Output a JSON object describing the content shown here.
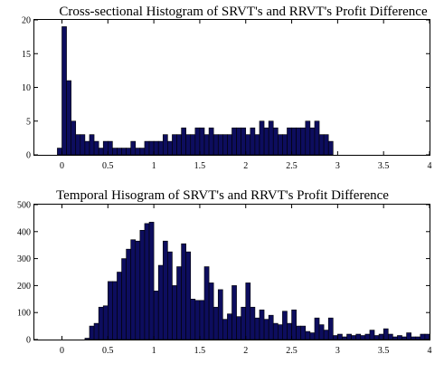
{
  "chart_data": [
    {
      "type": "bar",
      "title": "Cross-sectional Histogram of SRVT's and RRVT's Profit Difference",
      "xlabel": "",
      "ylabel": "",
      "xlim": [
        -0.3,
        4
      ],
      "ylim": [
        0,
        20
      ],
      "x_ticks": [
        "0",
        "0.5",
        "1",
        "1.5",
        "2",
        "2.5",
        "3",
        "3.5",
        "4"
      ],
      "y_ticks": [
        "0",
        "5",
        "10",
        "15",
        "20"
      ],
      "bin_width": 0.05,
      "bar_color": "#0d0d5e",
      "grid": false,
      "bins": [
        {
          "x": -0.025,
          "y": 1
        },
        {
          "x": 0.025,
          "y": 19
        },
        {
          "x": 0.075,
          "y": 11
        },
        {
          "x": 0.125,
          "y": 5
        },
        {
          "x": 0.175,
          "y": 3
        },
        {
          "x": 0.225,
          "y": 3
        },
        {
          "x": 0.275,
          "y": 2
        },
        {
          "x": 0.325,
          "y": 3
        },
        {
          "x": 0.375,
          "y": 2
        },
        {
          "x": 0.425,
          "y": 1
        },
        {
          "x": 0.475,
          "y": 2
        },
        {
          "x": 0.525,
          "y": 2
        },
        {
          "x": 0.575,
          "y": 1
        },
        {
          "x": 0.625,
          "y": 1
        },
        {
          "x": 0.675,
          "y": 1
        },
        {
          "x": 0.725,
          "y": 1
        },
        {
          "x": 0.775,
          "y": 2
        },
        {
          "x": 0.825,
          "y": 1
        },
        {
          "x": 0.875,
          "y": 1
        },
        {
          "x": 0.925,
          "y": 2
        },
        {
          "x": 0.975,
          "y": 2
        },
        {
          "x": 1.025,
          "y": 2
        },
        {
          "x": 1.075,
          "y": 2
        },
        {
          "x": 1.125,
          "y": 3
        },
        {
          "x": 1.175,
          "y": 2
        },
        {
          "x": 1.225,
          "y": 3
        },
        {
          "x": 1.275,
          "y": 3
        },
        {
          "x": 1.325,
          "y": 4
        },
        {
          "x": 1.375,
          "y": 3
        },
        {
          "x": 1.425,
          "y": 3
        },
        {
          "x": 1.475,
          "y": 4
        },
        {
          "x": 1.525,
          "y": 4
        },
        {
          "x": 1.575,
          "y": 3
        },
        {
          "x": 1.625,
          "y": 4
        },
        {
          "x": 1.675,
          "y": 3
        },
        {
          "x": 1.725,
          "y": 3
        },
        {
          "x": 1.775,
          "y": 3
        },
        {
          "x": 1.825,
          "y": 3
        },
        {
          "x": 1.875,
          "y": 4
        },
        {
          "x": 1.925,
          "y": 4
        },
        {
          "x": 1.975,
          "y": 4
        },
        {
          "x": 2.025,
          "y": 3
        },
        {
          "x": 2.075,
          "y": 4
        },
        {
          "x": 2.125,
          "y": 3
        },
        {
          "x": 2.175,
          "y": 5
        },
        {
          "x": 2.225,
          "y": 4
        },
        {
          "x": 2.275,
          "y": 5
        },
        {
          "x": 2.325,
          "y": 4
        },
        {
          "x": 2.375,
          "y": 3
        },
        {
          "x": 2.425,
          "y": 3
        },
        {
          "x": 2.475,
          "y": 4
        },
        {
          "x": 2.525,
          "y": 4
        },
        {
          "x": 2.575,
          "y": 4
        },
        {
          "x": 2.625,
          "y": 4
        },
        {
          "x": 2.675,
          "y": 5
        },
        {
          "x": 2.725,
          "y": 4
        },
        {
          "x": 2.775,
          "y": 5
        },
        {
          "x": 2.825,
          "y": 3
        },
        {
          "x": 2.875,
          "y": 3
        },
        {
          "x": 2.925,
          "y": 2
        }
      ]
    },
    {
      "type": "bar",
      "title": "Temporal Hisogram of SRVT's and RRVT's Profit Difference",
      "xlabel": "",
      "ylabel": "",
      "xlim": [
        -0.3,
        4
      ],
      "ylim": [
        0,
        500
      ],
      "x_ticks": [
        "0",
        "0.5",
        "1",
        "1.5",
        "2",
        "2.5",
        "3",
        "3.5",
        "4"
      ],
      "y_ticks": [
        "0",
        "100",
        "200",
        "300",
        "400",
        "500"
      ],
      "bin_width": 0.05,
      "bar_color": "#0d0d5e",
      "grid": false,
      "bins": [
        {
          "x": 0.275,
          "y": 5
        },
        {
          "x": 0.325,
          "y": 50
        },
        {
          "x": 0.375,
          "y": 60
        },
        {
          "x": 0.425,
          "y": 120
        },
        {
          "x": 0.475,
          "y": 125
        },
        {
          "x": 0.525,
          "y": 215
        },
        {
          "x": 0.575,
          "y": 215
        },
        {
          "x": 0.625,
          "y": 250
        },
        {
          "x": 0.675,
          "y": 300
        },
        {
          "x": 0.725,
          "y": 335
        },
        {
          "x": 0.775,
          "y": 370
        },
        {
          "x": 0.825,
          "y": 365
        },
        {
          "x": 0.875,
          "y": 405
        },
        {
          "x": 0.925,
          "y": 430
        },
        {
          "x": 0.975,
          "y": 435
        },
        {
          "x": 1.025,
          "y": 180
        },
        {
          "x": 1.075,
          "y": 275
        },
        {
          "x": 1.125,
          "y": 365
        },
        {
          "x": 1.175,
          "y": 325
        },
        {
          "x": 1.225,
          "y": 200
        },
        {
          "x": 1.275,
          "y": 270
        },
        {
          "x": 1.325,
          "y": 355
        },
        {
          "x": 1.375,
          "y": 325
        },
        {
          "x": 1.425,
          "y": 150
        },
        {
          "x": 1.475,
          "y": 145
        },
        {
          "x": 1.525,
          "y": 145
        },
        {
          "x": 1.575,
          "y": 270
        },
        {
          "x": 1.625,
          "y": 210
        },
        {
          "x": 1.675,
          "y": 120
        },
        {
          "x": 1.725,
          "y": 185
        },
        {
          "x": 1.775,
          "y": 75
        },
        {
          "x": 1.825,
          "y": 95
        },
        {
          "x": 1.875,
          "y": 200
        },
        {
          "x": 1.925,
          "y": 85
        },
        {
          "x": 1.975,
          "y": 120
        },
        {
          "x": 2.025,
          "y": 210
        },
        {
          "x": 2.075,
          "y": 120
        },
        {
          "x": 2.125,
          "y": 80
        },
        {
          "x": 2.175,
          "y": 110
        },
        {
          "x": 2.225,
          "y": 75
        },
        {
          "x": 2.275,
          "y": 90
        },
        {
          "x": 2.325,
          "y": 60
        },
        {
          "x": 2.375,
          "y": 55
        },
        {
          "x": 2.425,
          "y": 105
        },
        {
          "x": 2.475,
          "y": 60
        },
        {
          "x": 2.525,
          "y": 110
        },
        {
          "x": 2.575,
          "y": 50
        },
        {
          "x": 2.625,
          "y": 50
        },
        {
          "x": 2.675,
          "y": 30
        },
        {
          "x": 2.725,
          "y": 25
        },
        {
          "x": 2.775,
          "y": 80
        },
        {
          "x": 2.825,
          "y": 55
        },
        {
          "x": 2.875,
          "y": 35
        },
        {
          "x": 2.925,
          "y": 80
        },
        {
          "x": 2.975,
          "y": 15
        },
        {
          "x": 3.025,
          "y": 20
        },
        {
          "x": 3.075,
          "y": 10
        },
        {
          "x": 3.125,
          "y": 20
        },
        {
          "x": 3.175,
          "y": 15
        },
        {
          "x": 3.225,
          "y": 20
        },
        {
          "x": 3.275,
          "y": 15
        },
        {
          "x": 3.325,
          "y": 20
        },
        {
          "x": 3.375,
          "y": 35
        },
        {
          "x": 3.425,
          "y": 15
        },
        {
          "x": 3.475,
          "y": 20
        },
        {
          "x": 3.525,
          "y": 40
        },
        {
          "x": 3.575,
          "y": 20
        },
        {
          "x": 3.625,
          "y": 10
        },
        {
          "x": 3.675,
          "y": 15
        },
        {
          "x": 3.725,
          "y": 10
        },
        {
          "x": 3.775,
          "y": 25
        },
        {
          "x": 3.825,
          "y": 10
        },
        {
          "x": 3.875,
          "y": 10
        },
        {
          "x": 3.925,
          "y": 20
        },
        {
          "x": 3.975,
          "y": 20
        }
      ]
    }
  ]
}
